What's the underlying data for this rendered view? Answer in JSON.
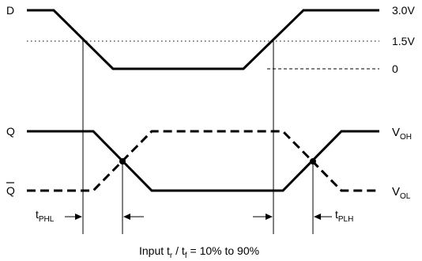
{
  "signals": {
    "d": "D",
    "q": "Q",
    "qbar": "Q"
  },
  "levels": {
    "high": "3.0V",
    "mid": "1.5V",
    "zero": "0",
    "voh_main": "V",
    "voh_sub": "OH",
    "vol_main": "V",
    "vol_sub": "OL"
  },
  "timing": {
    "tphl_main": "t",
    "tphl_sub": "PHL",
    "tplh_main": "t",
    "tplh_sub": "PLH"
  },
  "caption": {
    "part1": "Input t",
    "r": "r",
    "part2": " / t",
    "f": "f",
    "part3": " = 10% to 90%"
  }
}
